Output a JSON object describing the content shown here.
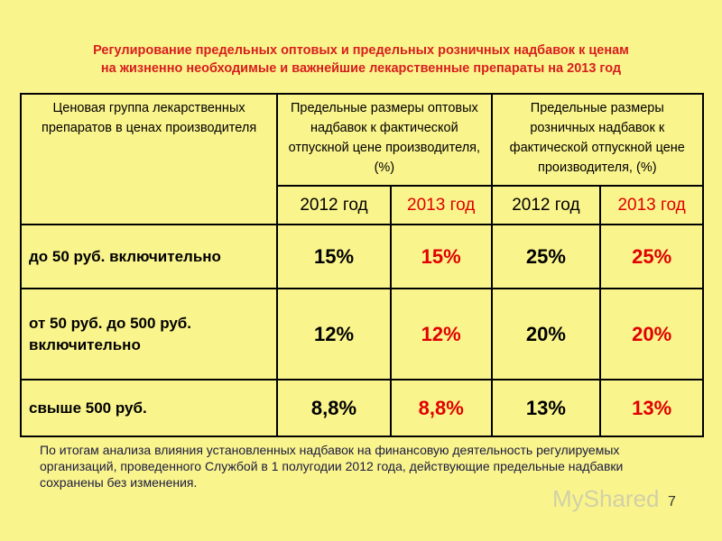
{
  "title": [
    "Регулирование  предельных оптовых и предельных розничных надбавок к ценам",
    "на жизненно необходимые и важнейшие лекарственные препараты  на 2013 год"
  ],
  "table": {
    "header": {
      "group": "Ценовая группа лекарственных препаратов в ценах производителя",
      "wholesale": "Предельные размеры оптовых надбавок к фактической отпускной цене производителя, (%)",
      "retail": "Предельные размеры розничных надбавок к фактической отпускной цене производителя, (%)",
      "years": [
        "2012 год",
        "2013 год",
        "2012 год",
        "2013 год"
      ]
    },
    "rows": [
      [
        "до 50 руб. включительно",
        "15%",
        "15%",
        "25%",
        "25%"
      ],
      [
        "от 50 руб. до 500 руб. включительно",
        "12%",
        "12%",
        "20%",
        "20%"
      ],
      [
        "свыше 500 руб.",
        "8,8%",
        "8,8%",
        "13%",
        "13%"
      ]
    ]
  },
  "footnote": "По итогам анализа влияния установленных надбавок на финансовую деятельность регулируемых организаций, проведенного Службой в 1 полугодии 2012 года, действующие предельные надбавки сохранены без изменения.",
  "watermark": "MyShared",
  "page_number": "7"
}
